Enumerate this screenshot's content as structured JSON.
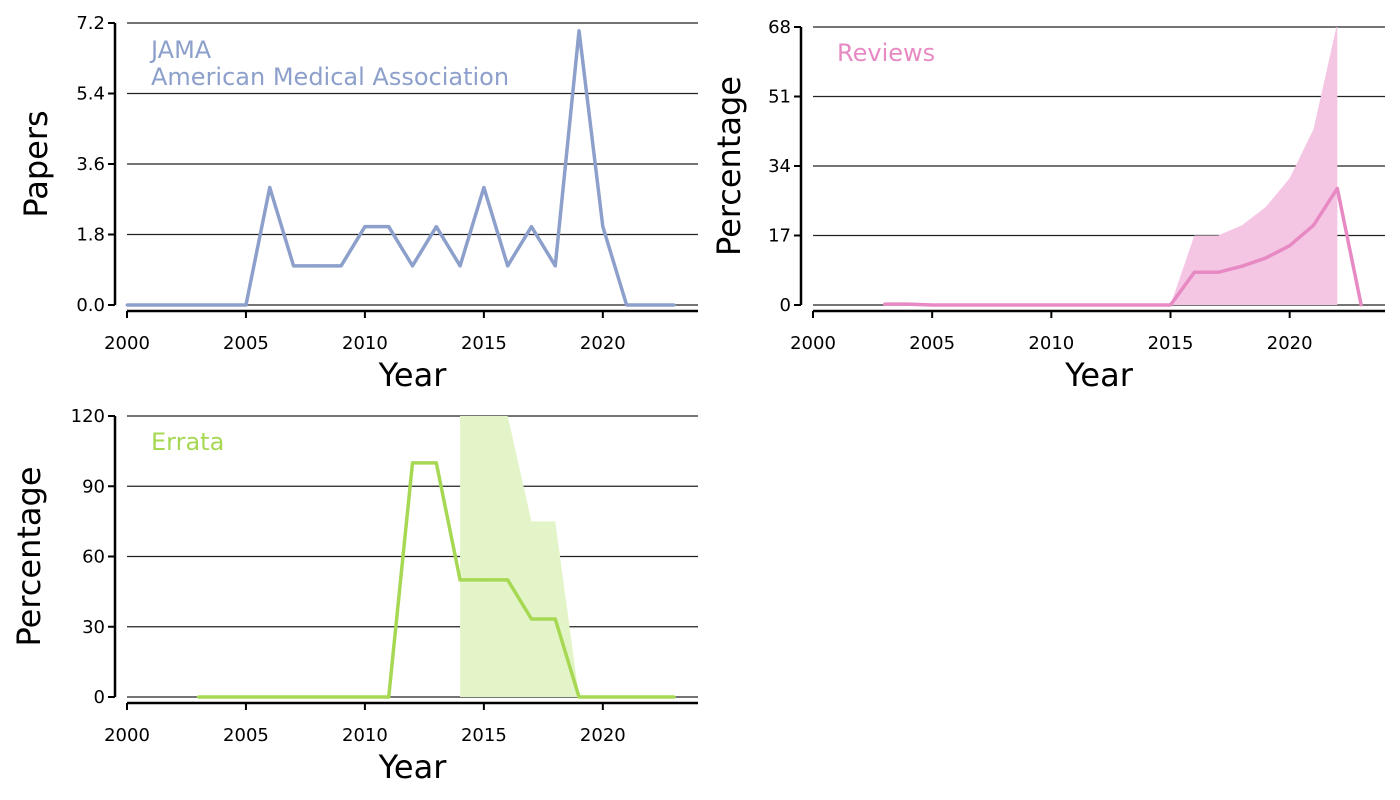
{
  "chart_data": [
    {
      "type": "line",
      "panel_labels": [
        "JAMA",
        "American Medical Association"
      ],
      "xlabel": "Year",
      "ylabel": "Papers",
      "xlim": [
        2000,
        2024
      ],
      "ylim": [
        0,
        7.2
      ],
      "xticks": [
        "2000",
        "2005",
        "2010",
        "2015",
        "2020"
      ],
      "yticks": [
        "0.0",
        "1.8",
        "3.6",
        "5.4",
        "7.2"
      ],
      "grid": "horizontal",
      "color": "#8da0cb",
      "x": [
        2000,
        2001,
        2002,
        2003,
        2004,
        2005,
        2006,
        2007,
        2008,
        2009,
        2010,
        2011,
        2012,
        2013,
        2014,
        2015,
        2016,
        2017,
        2018,
        2019,
        2020,
        2021,
        2022,
        2023
      ],
      "values": [
        0,
        0,
        0,
        0,
        0,
        0,
        3,
        1,
        1,
        1,
        2,
        2,
        1,
        2,
        1,
        3,
        1,
        2,
        1,
        7,
        2,
        0,
        0,
        0
      ]
    },
    {
      "type": "area",
      "panel_labels": [
        "Reviews"
      ],
      "xlabel": "Year",
      "ylabel": "Percentage",
      "xlim": [
        2000,
        2024
      ],
      "ylim": [
        0,
        68
      ],
      "xticks": [
        "2000",
        "2005",
        "2010",
        "2015",
        "2020"
      ],
      "yticks": [
        "0",
        "17",
        "34",
        "51",
        "68"
      ],
      "grid": "horizontal",
      "color": "#e78ac3",
      "band_color": "#f4c6e3",
      "x": [
        2003,
        2004,
        2005,
        2006,
        2007,
        2008,
        2009,
        2010,
        2011,
        2012,
        2013,
        2014,
        2015,
        2016,
        2017,
        2018,
        2019,
        2020,
        2021,
        2022,
        2023
      ],
      "values": [
        0.2,
        0.2,
        0,
        0,
        0,
        0,
        0,
        0,
        0,
        0,
        0,
        0,
        0,
        8,
        8,
        9.5,
        11.5,
        14.5,
        19.5,
        28.5,
        0
      ],
      "band": {
        "x": [
          2015,
          2016,
          2017,
          2018,
          2019,
          2020,
          2021,
          2022
        ],
        "lower": [
          0,
          0,
          0,
          0,
          0,
          0,
          0,
          0
        ],
        "upper": [
          0,
          17,
          17,
          19.5,
          24,
          31,
          43,
          69
        ]
      }
    },
    {
      "type": "area",
      "panel_labels": [
        "Errata"
      ],
      "xlabel": "Year",
      "ylabel": "Percentage",
      "xlim": [
        2000,
        2024
      ],
      "ylim": [
        0,
        120
      ],
      "xticks": [
        "2000",
        "2005",
        "2010",
        "2015",
        "2020"
      ],
      "yticks": [
        "0",
        "30",
        "60",
        "90",
        "120"
      ],
      "grid": "horizontal",
      "color": "#a6d854",
      "band_color": "#e3f5c8",
      "x": [
        2003,
        2004,
        2005,
        2006,
        2007,
        2008,
        2009,
        2010,
        2011,
        2012,
        2013,
        2014,
        2015,
        2016,
        2017,
        2018,
        2019,
        2020,
        2021,
        2022,
        2023
      ],
      "values": [
        0,
        0,
        0,
        0,
        0,
        0,
        0,
        0,
        0,
        100,
        100,
        50,
        50,
        50,
        33.3,
        33.3,
        0,
        0,
        0,
        0,
        0
      ],
      "band": {
        "x": [
          2014,
          2015,
          2016,
          2017,
          2018,
          2019
        ],
        "lower": [
          0,
          0,
          0,
          0,
          0,
          0
        ],
        "upper": [
          125,
          125,
          120,
          75,
          75,
          0
        ]
      }
    }
  ]
}
